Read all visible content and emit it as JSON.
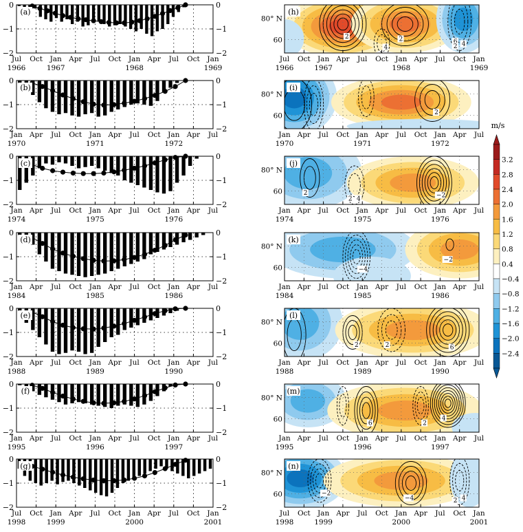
{
  "colorbar": {
    "unit": "m/s",
    "ticks": [
      "3.2",
      "2.8",
      "2.4",
      "2.0",
      "1.6",
      "1.2",
      "0.8",
      "0.4",
      "−0.4",
      "−0.8",
      "−1.2",
      "−1.6",
      "−2.0",
      "−2.4"
    ],
    "colors": [
      "#9b1b1b",
      "#c42a22",
      "#e14a2a",
      "#ec7033",
      "#f39a3c",
      "#f7bc44",
      "#fbd978",
      "#fdf0c0",
      "#ffffff",
      "#c6e3f5",
      "#8fcaee",
      "#4fb0e4",
      "#1f93d6",
      "#0b73bd",
      "#095895"
    ]
  },
  "chart_data": [
    {
      "type": "bar",
      "label": "(a)",
      "ylim": [
        -2,
        0
      ],
      "yticks": [
        "−2",
        "−1",
        "0"
      ],
      "yticks_right": [
        "−2",
        "−1",
        "0"
      ],
      "month_labels": [
        "Jul",
        "Oct",
        "Jan",
        "Apr",
        "Jul",
        "Oct",
        "Jan",
        "Apr",
        "Jul",
        "Oct",
        "Jan"
      ],
      "year_labels": [
        "1966",
        "1967",
        "1968",
        "1969"
      ],
      "bars": [
        -0.05,
        -0.1,
        -0.2,
        -0.15,
        -0.5,
        -0.6,
        -0.7,
        -0.55,
        -0.7,
        -0.6,
        -0.8,
        -0.7,
        -0.9,
        -0.85,
        -0.75,
        -0.7,
        -0.8,
        -0.9,
        -0.85,
        -0.8,
        -0.9,
        -1.0,
        -1.1,
        -1.0,
        -1.2,
        -1.3,
        -1.1,
        -1.0,
        -0.8,
        -0.5,
        -0.3,
        -0.1,
        0,
        0,
        0,
        0,
        0
      ],
      "curve": [
        -0.05,
        -0.15,
        -0.25,
        -0.35,
        -0.45,
        -0.52,
        -0.58,
        -0.62,
        -0.66,
        -0.7,
        -0.73,
        -0.75,
        -0.75,
        -0.72,
        -0.66,
        -0.58,
        -0.48,
        -0.36,
        -0.24,
        -0.12,
        0
      ]
    },
    {
      "type": "bar",
      "label": "(b)",
      "ylim": [
        -2,
        0
      ],
      "yticks": [
        "−2",
        "−1",
        "0"
      ],
      "yticks_right": [
        "−2",
        "−1",
        "0"
      ],
      "month_labels": [
        "Jan",
        "Apr",
        "Jul",
        "Oct",
        "Jan",
        "Apr",
        "Jul",
        "Oct",
        "Jan",
        "Apr",
        "Jul"
      ],
      "year_labels": [
        "1970",
        "1971",
        "1972"
      ],
      "bars": [
        -0.1,
        -0.3,
        -0.6,
        -0.9,
        -1.15,
        -1.3,
        -1.4,
        -1.35,
        -1.45,
        -1.5,
        -1.4,
        -1.35,
        -1.5,
        -1.45,
        -1.3,
        -1.2,
        -1.1,
        -1.0,
        -0.95,
        -1.0,
        -1.05,
        -0.85,
        -0.5,
        -0.3,
        -0.1,
        0,
        0,
        0,
        0,
        0
      ],
      "curve": [
        -0.1,
        -0.25,
        -0.42,
        -0.6,
        -0.75,
        -0.88,
        -0.98,
        -1.02,
        -1.0,
        -0.94,
        -0.86,
        -0.75,
        -0.62,
        -0.45,
        -0.25,
        0
      ]
    },
    {
      "type": "bar",
      "label": "(c)",
      "ylim": [
        -2,
        0
      ],
      "yticks": [
        "−2",
        "−1",
        "0"
      ],
      "yticks_right": [
        "−2",
        "−1",
        "0"
      ],
      "month_labels": [
        "Jan",
        "Apr",
        "Jul",
        "Oct",
        "Jan",
        "Apr",
        "Jul",
        "Oct",
        "Jan",
        "Apr",
        "Jul"
      ],
      "year_labels": [
        "1974",
        "1975",
        "1976"
      ],
      "bars": [
        -1.4,
        -1.1,
        -0.8,
        -0.5,
        -0.3,
        -0.35,
        -0.25,
        -0.3,
        -0.4,
        -0.5,
        -0.45,
        -0.4,
        -0.5,
        -0.6,
        -0.7,
        -0.8,
        -1.0,
        -1.1,
        -1.2,
        -1.3,
        -1.4,
        -1.5,
        -1.55,
        -1.45,
        -1.1,
        -0.8,
        -0.4,
        -0.1,
        0,
        0
      ],
      "curve": [
        -0.35,
        -0.5,
        -0.6,
        -0.66,
        -0.7,
        -0.72,
        -0.72,
        -0.7,
        -0.65,
        -0.58,
        -0.5,
        -0.4,
        -0.28,
        -0.15,
        -0.05,
        0
      ]
    },
    {
      "type": "bar",
      "label": "(d)",
      "ylim": [
        -2,
        0
      ],
      "yticks": [
        "−2",
        "−1",
        "0"
      ],
      "yticks_right": [
        "−2",
        "−1",
        "0"
      ],
      "month_labels": [
        "Jan",
        "Apr",
        "Jul",
        "Oct",
        "Jan",
        "Apr",
        "Jul",
        "Oct",
        "Jan",
        "Apr",
        "Jul"
      ],
      "year_labels": [
        "1984",
        "1985",
        "1986"
      ],
      "bars": [
        -0.1,
        -0.2,
        -0.5,
        -0.9,
        -1.2,
        -1.5,
        -1.6,
        -1.7,
        -1.75,
        -1.8,
        -1.85,
        -1.8,
        -1.75,
        -1.7,
        -1.6,
        -1.5,
        -1.4,
        -1.3,
        -1.2,
        -1.1,
        -0.9,
        -0.8,
        -0.7,
        -0.6,
        -0.5,
        -0.4,
        -0.3,
        -0.2,
        -0.1,
        0
      ],
      "curve": [
        -0.2,
        -0.45,
        -0.68,
        -0.85,
        -0.98,
        -1.08,
        -1.15,
        -1.18,
        -1.17,
        -1.12,
        -1.03,
        -0.9,
        -0.73,
        -0.53,
        -0.3,
        -0.1
      ]
    },
    {
      "type": "bar",
      "label": "(e)",
      "ylim": [
        -2,
        0
      ],
      "yticks": [
        "−2",
        "−1",
        "0"
      ],
      "yticks_right": [
        "−2",
        "−1",
        "0"
      ],
      "month_labels": [
        "Jan",
        "Apr",
        "Jul",
        "Oct",
        "Jan",
        "Apr",
        "Jul",
        "Oct",
        "Jan",
        "Apr",
        "Jul"
      ],
      "year_labels": [
        "1988",
        "1989",
        "1990"
      ],
      "bars": [
        -0.1,
        -0.6,
        -0.9,
        -1.2,
        -1.5,
        -1.8,
        -1.9,
        -1.85,
        -1.75,
        -1.8,
        -1.9,
        -1.85,
        -1.6,
        -1.4,
        -1.2,
        -1.1,
        -0.9,
        -0.8,
        -0.7,
        -0.6,
        -0.5,
        -0.4,
        -0.3,
        -0.2,
        -0.1,
        0,
        0,
        0,
        0,
        0
      ],
      "curve": [
        -0.15,
        -0.35,
        -0.55,
        -0.7,
        -0.8,
        -0.85,
        -0.86,
        -0.82,
        -0.74,
        -0.63,
        -0.5,
        -0.36,
        -0.22,
        -0.1,
        -0.02,
        0
      ]
    },
    {
      "type": "bar",
      "label": "(f)",
      "ylim": [
        -2,
        0
      ],
      "yticks": [
        "−2",
        "−1",
        "0"
      ],
      "yticks_right": [
        "−2",
        "−1",
        "0"
      ],
      "month_labels": [
        "Jan",
        "Apr",
        "Jul",
        "Oct",
        "Jan",
        "Apr",
        "Jul",
        "Oct",
        "Jan",
        "Apr",
        "Jul"
      ],
      "year_labels": [
        "1995",
        "1996",
        "1997"
      ],
      "bars": [
        -0.05,
        -0.15,
        -0.3,
        -0.45,
        -0.55,
        -0.65,
        -0.75,
        -0.85,
        -0.8,
        -0.75,
        -0.8,
        -0.85,
        -0.9,
        -0.95,
        -1.0,
        -0.9,
        -0.85,
        -0.9,
        -0.95,
        -0.85,
        -0.7,
        -0.5,
        -0.3,
        -0.1,
        0,
        0,
        0,
        0,
        0,
        0
      ],
      "curve": [
        -0.05,
        -0.18,
        -0.35,
        -0.5,
        -0.62,
        -0.72,
        -0.78,
        -0.8,
        -0.78,
        -0.72,
        -0.62,
        -0.48,
        -0.32,
        -0.16,
        -0.04,
        0
      ]
    },
    {
      "type": "bar",
      "label": "(g)",
      "ylim": [
        -2,
        0
      ],
      "yticks": [
        "−2",
        "−1",
        "0"
      ],
      "yticks_right": [
        "−2",
        "−1",
        "0"
      ],
      "month_labels": [
        "Jul",
        "Oct",
        "Jan",
        "Apr",
        "Jul",
        "Oct",
        "Jan",
        "Apr",
        "Jul",
        "Oct",
        "Jan"
      ],
      "year_labels": [
        "1998",
        "1999",
        "2000",
        "2001"
      ],
      "bars": [
        -0.4,
        -0.7,
        -0.9,
        -1.0,
        -1.1,
        -1.0,
        -0.9,
        -1.05,
        -0.95,
        -0.9,
        -1.0,
        -1.1,
        -1.2,
        -1.3,
        -1.4,
        -1.5,
        -1.55,
        -1.4,
        -1.2,
        -1.0,
        -0.9,
        -0.8,
        -0.7,
        -0.6,
        -0.5,
        -0.4,
        -0.3,
        -0.4,
        -0.5,
        -0.6,
        -0.7,
        -0.8,
        -0.7,
        -0.6,
        -0.5,
        -0.4
      ],
      "curve": [
        -0.3,
        -0.42,
        -0.55,
        -0.66,
        -0.75,
        -0.82,
        -0.87,
        -0.9,
        -0.9,
        -0.87,
        -0.8,
        -0.7,
        -0.56,
        -0.4,
        -0.22,
        -0.05
      ]
    },
    {
      "type": "heatmap",
      "label": "(h)",
      "ylabels": [
        "80° N",
        "60"
      ],
      "month_labels": [
        "Jul",
        "Oct",
        "Jan",
        "Apr",
        "Jul",
        "Oct",
        "Jan",
        "Apr",
        "Jul",
        "Oct",
        "Jan"
      ],
      "year_labels": [
        "1966",
        "1967",
        "1968",
        "1969"
      ],
      "contour_labels": [
        "2",
        "2",
        "4",
        "6",
        "4",
        "2"
      ]
    },
    {
      "type": "heatmap",
      "label": "(i)",
      "ylabels": [
        "80° N",
        "60"
      ],
      "month_labels": [
        "Jan",
        "Apr",
        "Jul",
        "Oct",
        "Jan",
        "Apr",
        "Jul",
        "Oct",
        "Jan",
        "Apr",
        "Jul"
      ],
      "year_labels": [
        "1970",
        "1971",
        "1972"
      ],
      "contour_labels": [
        "2"
      ]
    },
    {
      "type": "heatmap",
      "label": "(j)",
      "ylabels": [
        "80° N",
        "60"
      ],
      "month_labels": [
        "Jan",
        "Apr",
        "Jul",
        "Oct",
        "Jan",
        "Apr",
        "Jul",
        "Oct",
        "Jan",
        "Apr",
        "Jul"
      ],
      "year_labels": [
        "1974",
        "1975",
        "1976"
      ],
      "contour_labels": [
        "−2",
        "2",
        "4",
        "2"
      ]
    },
    {
      "type": "heatmap",
      "label": "(k)",
      "ylabels": [
        "80° N",
        "60"
      ],
      "month_labels": [
        "Jan",
        "Apr",
        "Jul",
        "Oct",
        "Jan",
        "Apr",
        "Jul",
        "Oct",
        "Jan",
        "Apr",
        "Jul"
      ],
      "year_labels": [
        "1984",
        "1985",
        "1986"
      ],
      "contour_labels": [
        "−4",
        "−2"
      ]
    },
    {
      "type": "heatmap",
      "label": "(l)",
      "ylabels": [
        "80° N",
        "60"
      ],
      "month_labels": [
        "Jan",
        "Apr",
        "Jul",
        "Oct",
        "Jan",
        "Apr",
        "Jul",
        "Oct",
        "Jan",
        "Apr",
        "Jul"
      ],
      "year_labels": [
        "1988",
        "1989",
        "1990"
      ],
      "contour_labels": [
        "2",
        "2",
        "6"
      ]
    },
    {
      "type": "heatmap",
      "label": "(m)",
      "ylabels": [
        "80° N",
        "60"
      ],
      "month_labels": [
        "Jan",
        "Apr",
        "Jul",
        "Oct",
        "Jan",
        "Apr",
        "Jul",
        "Oct",
        "Jan",
        "Apr",
        "Jul"
      ],
      "year_labels": [
        "1995",
        "1996",
        "1997"
      ],
      "contour_labels": [
        "6",
        "4",
        "2"
      ]
    },
    {
      "type": "heatmap",
      "label": "(n)",
      "ylabels": [
        "80° N",
        "60"
      ],
      "month_labels": [
        "Jul",
        "Oct",
        "Jan",
        "Apr",
        "Jul",
        "Oct",
        "Jan",
        "Apr",
        "Jul",
        "Oct",
        "Jan"
      ],
      "year_labels": [
        "1998",
        "1999",
        "2000",
        "2001"
      ],
      "contour_labels": [
        "−2",
        "−4",
        "4",
        "2"
      ]
    }
  ]
}
